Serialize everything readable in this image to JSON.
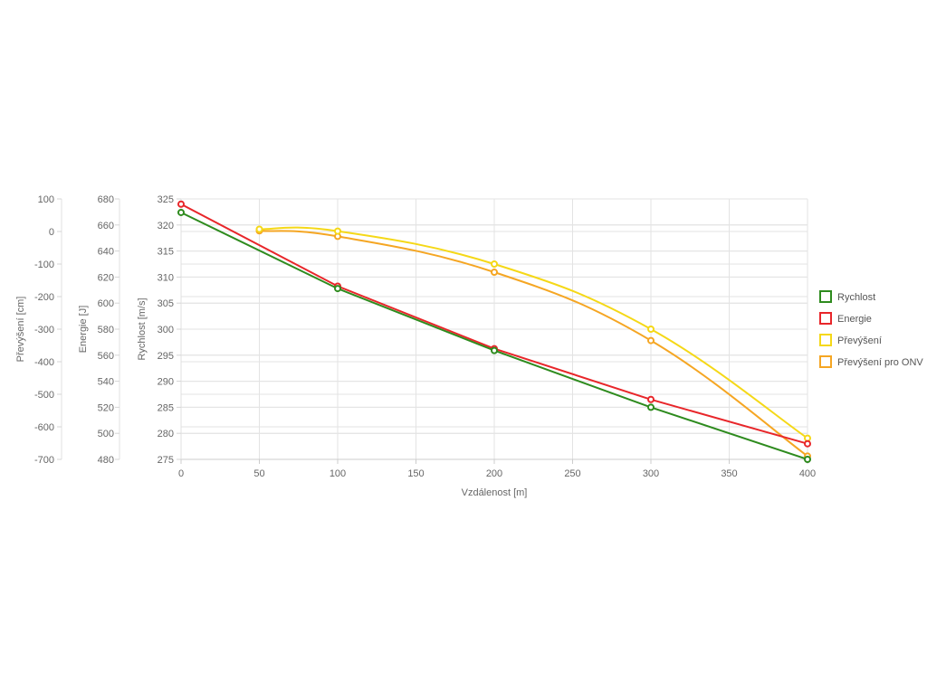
{
  "chart_data": {
    "type": "line",
    "xlabel": "Vzdálenost [m]",
    "x_ticks": [
      0,
      50,
      100,
      150,
      200,
      250,
      300,
      350,
      400
    ],
    "xlim": [
      0,
      400
    ],
    "grid": true,
    "legend_position": "right",
    "axes": [
      {
        "id": "prevyseni",
        "label": "Převýšení [cm]",
        "range": [
          -700,
          100
        ],
        "ticks": [
          100,
          0,
          -100,
          -200,
          -300,
          -400,
          -500,
          -600,
          -700
        ]
      },
      {
        "id": "energie",
        "label": "Energie [J]",
        "range": [
          480,
          680
        ],
        "ticks": [
          680,
          660,
          640,
          620,
          600,
          580,
          560,
          540,
          520,
          500,
          480
        ]
      },
      {
        "id": "rychlost",
        "label": "Rychlost [m/s]",
        "range": [
          275,
          325
        ],
        "ticks": [
          325,
          320,
          315,
          310,
          305,
          300,
          295,
          290,
          285,
          280,
          275
        ]
      }
    ],
    "series": [
      {
        "name": "Rychlost",
        "axis": "rychlost",
        "color": "#2e8b1e",
        "smooth": false,
        "x": [
          0,
          100,
          200,
          300,
          400
        ],
        "y": [
          322.4,
          307.8,
          295.9,
          285.0,
          275.0
        ]
      },
      {
        "name": "Energie",
        "axis": "energie",
        "color": "#e8262a",
        "smooth": false,
        "x": [
          0,
          100,
          200,
          300,
          400
        ],
        "y": [
          676,
          613,
          565,
          526,
          492
        ]
      },
      {
        "name": "Převýšení",
        "axis": "prevyseni",
        "color": "#f5d817",
        "smooth": true,
        "x": [
          50,
          100,
          200,
          300,
          400
        ],
        "y": [
          7,
          1,
          -100,
          -300,
          -635
        ]
      },
      {
        "name": "Převýšení pro ONV",
        "axis": "prevyseni",
        "color": "#f5a623",
        "smooth": true,
        "x": [
          50,
          100,
          200,
          300,
          400
        ],
        "y": [
          2,
          -15,
          -125,
          -335,
          -690
        ]
      }
    ]
  }
}
